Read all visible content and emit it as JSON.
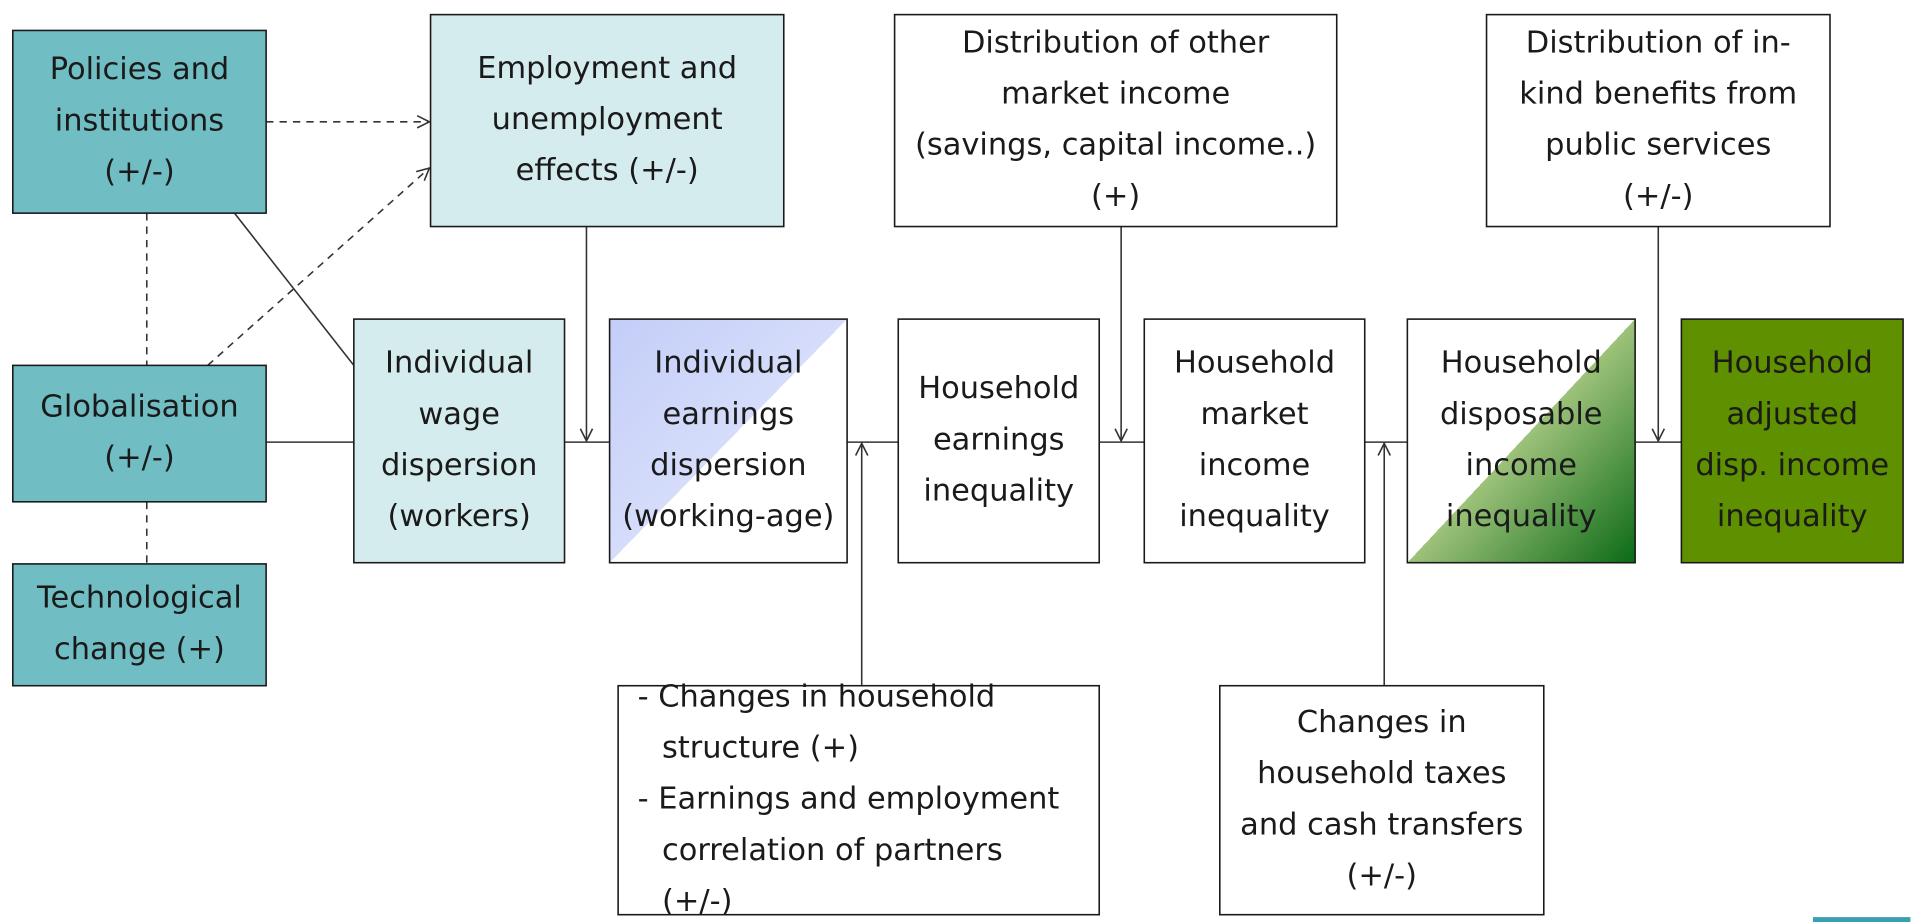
{
  "nodes": [
    {
      "lines": [
        "Policies and",
        "institutions",
        "(+/-)"
      ]
    },
    {
      "lines": [
        "Employment and",
        "unemployment",
        "effects (+/-)"
      ]
    },
    {
      "lines": [
        "Distribution of other",
        "market income",
        "(savings, capital income..)",
        "(+)"
      ]
    },
    {
      "lines": [
        "Distribution of in-",
        "kind benefits from",
        "public services",
        "(+/-)"
      ]
    },
    {
      "lines": [
        "Globalisation",
        "(+/-)"
      ]
    },
    {
      "lines": [
        "Technological",
        "change (+)"
      ]
    },
    {
      "lines": [
        "Individual",
        "wage",
        "dispersion",
        "(workers)"
      ]
    },
    {
      "lines": [
        "Individual",
        "earnings",
        "dispersion",
        "(working-age)"
      ]
    },
    {
      "lines": [
        "Household",
        "earnings",
        "inequality"
      ]
    },
    {
      "lines": [
        "Household",
        "market",
        "income",
        "inequality"
      ]
    },
    {
      "lines": [
        "Household",
        "disposable",
        "income",
        "inequality"
      ]
    },
    {
      "lines": [
        "Household",
        "adjusted",
        "disp. income",
        "inequality"
      ]
    },
    {
      "lines": [
        "- Changes in household",
        "structure (+)",
        "- Earnings and employment",
        "correlation of partners",
        "(+/-)"
      ]
    },
    {
      "lines": [
        "Changes in",
        "household taxes",
        "and cash transfers",
        "(+/-)"
      ]
    }
  ]
}
